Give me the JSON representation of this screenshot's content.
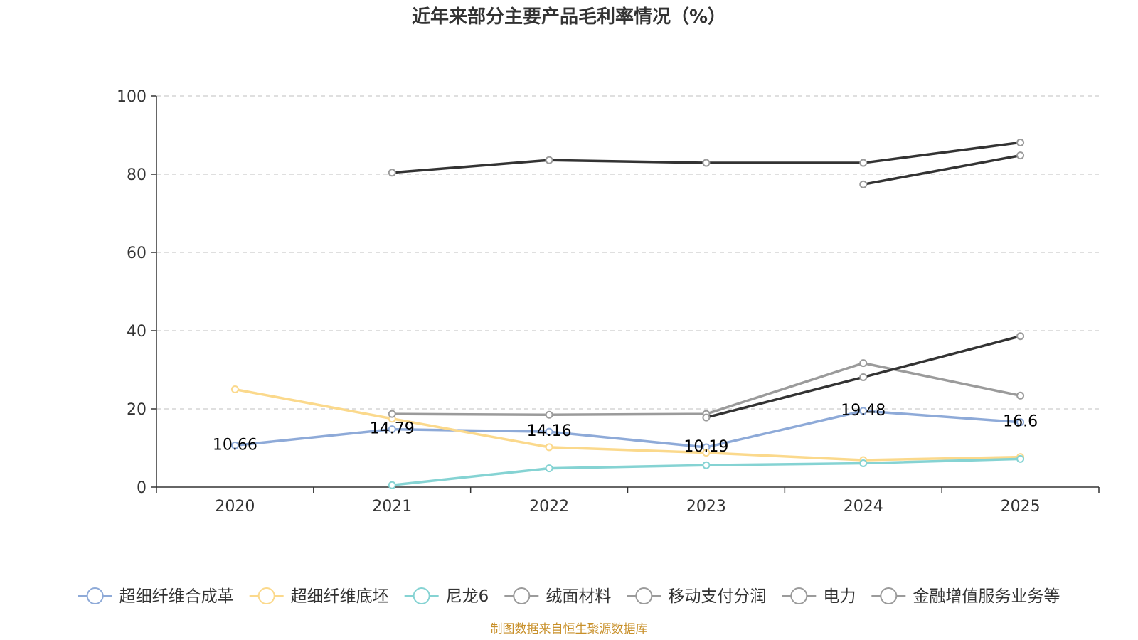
{
  "chart_data": {
    "type": "line",
    "title": "近年来部分主要产品毛利率情况（%）",
    "xlabel": "",
    "ylabel": "",
    "x": [
      "2020",
      "2021",
      "2022",
      "2023",
      "2024",
      "2025"
    ],
    "ylim": [
      0,
      100
    ],
    "yticks": [
      0,
      20,
      40,
      60,
      80,
      100
    ],
    "grid": true,
    "legend_position": "bottom",
    "series": [
      {
        "name": "超细纤维合成革",
        "color": "#8eaad8",
        "values": [
          10.66,
          14.79,
          14.16,
          10.19,
          19.48,
          16.6
        ],
        "show_labels": true
      },
      {
        "name": "超细纤维底坯",
        "color": "#fbd98c",
        "values": [
          25,
          17.5,
          10.2,
          8.8,
          6.9,
          7.7
        ],
        "show_labels": false
      },
      {
        "name": "尼龙6",
        "color": "#85d3d3",
        "values": [
          null,
          0.5,
          4.8,
          5.6,
          6.1,
          7.2
        ],
        "show_labels": false
      },
      {
        "name": "绒面材料",
        "color": "#9b9b9b",
        "values": [
          null,
          18.7,
          18.5,
          18.7,
          31.7,
          23.4
        ],
        "show_labels": false
      },
      {
        "name": "移动支付分润",
        "color": "#333333",
        "values": [
          null,
          80.4,
          83.6,
          82.9,
          82.9,
          88.1
        ],
        "show_labels": false
      },
      {
        "name": "电力",
        "color": "#333333",
        "values": [
          null,
          null,
          null,
          17.8,
          28.1,
          38.6
        ],
        "show_labels": false
      },
      {
        "name": "金融增值服务业务等",
        "color": "#333333",
        "values": [
          null,
          null,
          null,
          null,
          77.4,
          84.8
        ],
        "show_labels": false
      }
    ]
  },
  "legend": {
    "icon_color": "#9b9b9b",
    "first_icon_colors": [
      "#8eaad8",
      "#fbd98c",
      "#85d3d3"
    ]
  },
  "source": "制图数据来自恒生聚源数据库"
}
